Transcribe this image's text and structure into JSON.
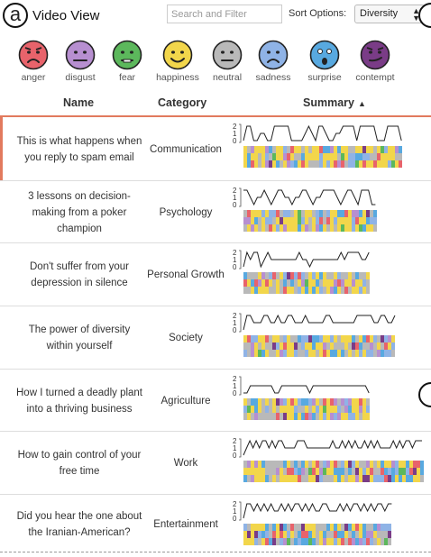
{
  "panel_label": "a",
  "header": {
    "title": "Video View",
    "search_placeholder": "Search and Filter",
    "sort_label": "Sort Options:",
    "sort_value": "Diversity"
  },
  "emotions": [
    {
      "label": "anger",
      "color": "#e8636b",
      "icon": "angry-face-icon"
    },
    {
      "label": "disgust",
      "color": "#b78fd0",
      "icon": "disgusted-face-icon"
    },
    {
      "label": "fear",
      "color": "#5cb85c",
      "icon": "fearful-face-icon"
    },
    {
      "label": "happiness",
      "color": "#f2d64b",
      "icon": "happy-face-icon"
    },
    {
      "label": "neutral",
      "color": "#b9b9b9",
      "icon": "neutral-face-icon"
    },
    {
      "label": "sadness",
      "color": "#8fb3e6",
      "icon": "sad-face-icon"
    },
    {
      "label": "surprise",
      "color": "#58a9e0",
      "icon": "surprised-face-icon"
    },
    {
      "label": "contempt",
      "color": "#7a3c87",
      "icon": "contempt-face-icon"
    }
  ],
  "columns": {
    "name": "Name",
    "category": "Category",
    "summary": "Summary",
    "summary_sort": "▲"
  },
  "axis_ticks": [
    "2",
    "1",
    "0"
  ],
  "videos": [
    {
      "name": "This is what happens when you reply to spam email",
      "category": "Communication",
      "selected": true,
      "line": [
        0,
        2,
        2,
        0,
        0,
        1,
        1,
        0,
        0,
        2,
        2,
        2,
        2,
        2,
        0,
        0,
        0,
        0,
        1,
        2,
        1,
        0,
        2,
        2,
        1,
        0,
        0,
        1,
        1,
        2,
        2,
        2,
        2,
        0,
        2,
        2,
        2,
        2,
        2,
        0,
        0,
        0,
        2,
        2,
        2,
        2,
        0
      ],
      "bar_rows": 3
    },
    {
      "name": "3 lessons on decision-making from a poker champion",
      "category": "Psychology",
      "selected": false,
      "line": [
        2,
        2,
        1,
        0,
        1,
        1,
        2,
        1,
        0,
        1,
        2,
        2,
        1,
        1,
        0,
        1,
        1,
        2,
        2,
        1,
        0,
        1,
        1,
        2,
        2,
        2,
        2,
        1,
        0,
        1,
        2,
        2,
        1,
        0,
        2,
        2,
        2,
        0,
        0
      ],
      "bar_rows": 3
    },
    {
      "name": "Don't suffer from your depression in silence",
      "category": "Personal Growth",
      "selected": false,
      "line": [
        0,
        2,
        1,
        2,
        2,
        0,
        1,
        2,
        1,
        1,
        1,
        1,
        1,
        1,
        1,
        1,
        2,
        1,
        1,
        0,
        1,
        1,
        1,
        1,
        1,
        1,
        1,
        1,
        2,
        1,
        2,
        2,
        2,
        2,
        1,
        1,
        2
      ],
      "bar_rows": 3
    },
    {
      "name": "The power of diversity within yourself",
      "category": "Society",
      "selected": false,
      "line": [
        0,
        2,
        2,
        1,
        1,
        1,
        2,
        2,
        1,
        1,
        2,
        1,
        1,
        2,
        2,
        1,
        1,
        1,
        2,
        1,
        1,
        1,
        1,
        1,
        2,
        2,
        1,
        1,
        1,
        1,
        1,
        1,
        1,
        2,
        2,
        2,
        2,
        2,
        1,
        1,
        2,
        2,
        1,
        1,
        2
      ],
      "bar_rows": 3
    },
    {
      "name": "How I turned a deadly plant into a thriving business",
      "category": "Agriculture",
      "selected": false,
      "line": [
        0,
        0,
        1,
        1,
        1,
        1,
        1,
        1,
        1,
        0,
        0,
        1,
        1,
        1,
        1,
        1,
        1,
        1,
        1,
        0,
        1,
        1,
        1,
        1,
        1,
        1,
        1,
        1,
        1,
        1,
        1,
        1,
        1,
        1,
        1,
        1,
        0
      ],
      "bar_rows": 3
    },
    {
      "name": "How to gain control of your free time",
      "category": "Work",
      "selected": false,
      "line": [
        0,
        1,
        2,
        1,
        2,
        1,
        2,
        2,
        1,
        2,
        1,
        2,
        2,
        1,
        1,
        1,
        1,
        2,
        2,
        2,
        1,
        1,
        1,
        1,
        1,
        1,
        1,
        1,
        2,
        1,
        1,
        2,
        1,
        2,
        1,
        2,
        1,
        1,
        2,
        1,
        2,
        1,
        2,
        1,
        1,
        1,
        1,
        2,
        1,
        2,
        1,
        2,
        2,
        1,
        2,
        2,
        2
      ],
      "bar_rows": 3
    },
    {
      "name": "Did you hear the one about the Iranian-American?",
      "category": "Entertainment",
      "selected": false,
      "line": [
        0,
        2,
        2,
        1,
        2,
        1,
        2,
        1,
        2,
        1,
        1,
        2,
        1,
        2,
        1,
        2,
        2,
        1,
        2,
        1,
        2,
        1,
        1,
        2,
        2,
        1,
        1,
        1,
        2,
        1,
        2,
        1,
        2,
        2,
        1,
        2,
        1,
        2,
        1,
        2,
        2,
        1,
        2,
        2
      ],
      "bar_rows": 3
    }
  ]
}
